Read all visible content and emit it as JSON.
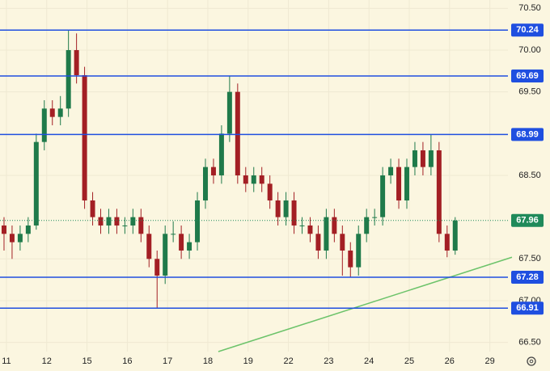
{
  "chart_data": {
    "type": "candlestick",
    "x": [
      -0.06,
      0.14,
      0.34,
      0.54,
      0.74,
      0.94,
      1.14,
      1.34,
      1.54,
      1.74,
      1.94,
      2.14,
      2.34,
      2.54,
      2.74,
      2.94,
      3.14,
      3.34,
      3.54,
      3.74,
      3.94,
      4.14,
      4.34,
      4.54,
      4.74,
      4.94,
      5.14,
      5.34,
      5.54,
      5.74,
      5.94,
      6.14,
      6.34,
      6.54,
      6.74,
      6.94,
      7.14,
      7.34,
      7.54,
      7.74,
      7.94,
      8.14,
      8.34,
      8.54,
      8.74,
      8.94,
      9.14,
      9.34,
      9.54,
      9.74,
      9.94,
      10.14,
      10.34,
      10.54,
      10.74,
      10.94,
      11.14
    ],
    "open": [
      67.9,
      67.8,
      67.7,
      67.8,
      67.9,
      68.9,
      69.3,
      69.2,
      69.3,
      70.0,
      69.7,
      68.2,
      68.0,
      67.9,
      68.0,
      67.9,
      67.9,
      68.0,
      67.8,
      67.5,
      67.3,
      67.8,
      67.8,
      67.6,
      67.7,
      68.2,
      68.6,
      68.5,
      69.0,
      69.5,
      68.5,
      68.4,
      68.5,
      68.4,
      68.2,
      68.0,
      68.2,
      67.9,
      67.9,
      67.8,
      67.6,
      68.0,
      67.8,
      67.6,
      67.4,
      67.8,
      68.0,
      68.0,
      68.5,
      68.6,
      68.2,
      68.6,
      68.8,
      68.6,
      68.8,
      67.8,
      67.6
    ],
    "high": [
      68.0,
      67.9,
      67.9,
      68.0,
      69.0,
      69.4,
      69.4,
      69.45,
      70.24,
      70.2,
      69.8,
      68.3,
      68.1,
      68.1,
      68.1,
      68.0,
      68.1,
      68.1,
      67.9,
      67.6,
      67.9,
      67.95,
      67.9,
      67.8,
      68.3,
      68.7,
      68.7,
      69.1,
      69.69,
      69.6,
      68.6,
      68.6,
      68.6,
      68.5,
      68.3,
      68.3,
      68.3,
      68.0,
      68.0,
      67.9,
      68.1,
      68.1,
      67.9,
      67.7,
      67.9,
      68.1,
      68.1,
      68.6,
      68.7,
      68.7,
      68.7,
      68.9,
      68.9,
      68.99,
      68.9,
      67.9,
      68.0
    ],
    "low": [
      67.6,
      67.5,
      67.6,
      67.7,
      67.85,
      68.8,
      69.1,
      69.1,
      69.2,
      69.6,
      68.1,
      67.9,
      67.8,
      67.8,
      67.8,
      67.8,
      67.8,
      67.7,
      67.4,
      66.91,
      67.2,
      67.7,
      67.5,
      67.5,
      67.6,
      68.1,
      68.4,
      68.4,
      68.9,
      68.4,
      68.3,
      68.3,
      68.3,
      68.1,
      67.9,
      67.9,
      67.8,
      67.8,
      67.7,
      67.5,
      67.5,
      67.7,
      67.3,
      67.28,
      67.3,
      67.7,
      67.9,
      67.9,
      68.4,
      68.1,
      68.1,
      68.5,
      68.5,
      68.5,
      67.7,
      67.52,
      67.55
    ],
    "close": [
      67.8,
      67.7,
      67.8,
      67.9,
      68.9,
      69.3,
      69.2,
      69.3,
      70.0,
      69.7,
      68.2,
      68.0,
      67.9,
      68.0,
      67.9,
      67.9,
      68.0,
      67.8,
      67.5,
      67.3,
      67.8,
      67.8,
      67.6,
      67.7,
      68.2,
      68.6,
      68.5,
      69.0,
      69.5,
      68.5,
      68.4,
      68.5,
      68.4,
      68.2,
      68.0,
      68.2,
      67.9,
      67.9,
      67.8,
      67.6,
      68.0,
      67.8,
      67.6,
      67.4,
      67.8,
      68.0,
      68.0,
      68.5,
      68.6,
      68.2,
      68.6,
      68.8,
      68.6,
      68.8,
      67.8,
      67.6,
      67.96
    ],
    "up_color": "#1f7a4a",
    "down_color": "#a31f24",
    "xlim": [
      -0.16,
      12.45
    ],
    "ylim": [
      66.39,
      70.6
    ],
    "xticks": [
      {
        "value": 0,
        "label": "11"
      },
      {
        "value": 1,
        "label": "12"
      },
      {
        "value": 2,
        "label": "15"
      },
      {
        "value": 3,
        "label": "16"
      },
      {
        "value": 4,
        "label": "17"
      },
      {
        "value": 5,
        "label": "18"
      },
      {
        "value": 6,
        "label": "19"
      },
      {
        "value": 7,
        "label": "22"
      },
      {
        "value": 8,
        "label": "23"
      },
      {
        "value": 9,
        "label": "24"
      },
      {
        "value": 10,
        "label": "25"
      },
      {
        "value": 11,
        "label": "26"
      },
      {
        "value": 12,
        "label": "29"
      }
    ],
    "yticks": [
      {
        "value": 66.5,
        "label": "66.50"
      },
      {
        "value": 67,
        "label": "67.00"
      },
      {
        "value": 67.5,
        "label": "67.50"
      },
      {
        "value": 68.5,
        "label": "68.50"
      },
      {
        "value": 69.5,
        "label": "69.50"
      },
      {
        "value": 70,
        "label": "70.00"
      },
      {
        "value": 70.5,
        "label": "70.50"
      }
    ],
    "grid": true,
    "levels": [
      {
        "value": 70.24,
        "color": "#1f4fe0"
      },
      {
        "value": 69.69,
        "color": "#1f4fe0"
      },
      {
        "value": 68.99,
        "color": "#1f4fe0"
      },
      {
        "value": 67.28,
        "color": "#1f4fe0"
      },
      {
        "value": 66.91,
        "color": "#1f4fe0"
      }
    ],
    "last_price": 67.96,
    "last_price_color": "#1f8a5a",
    "trendline": {
      "x": [
        5.26,
        12.55
      ],
      "y": [
        66.39,
        67.52
      ],
      "color": "#6cc36a"
    }
  }
}
